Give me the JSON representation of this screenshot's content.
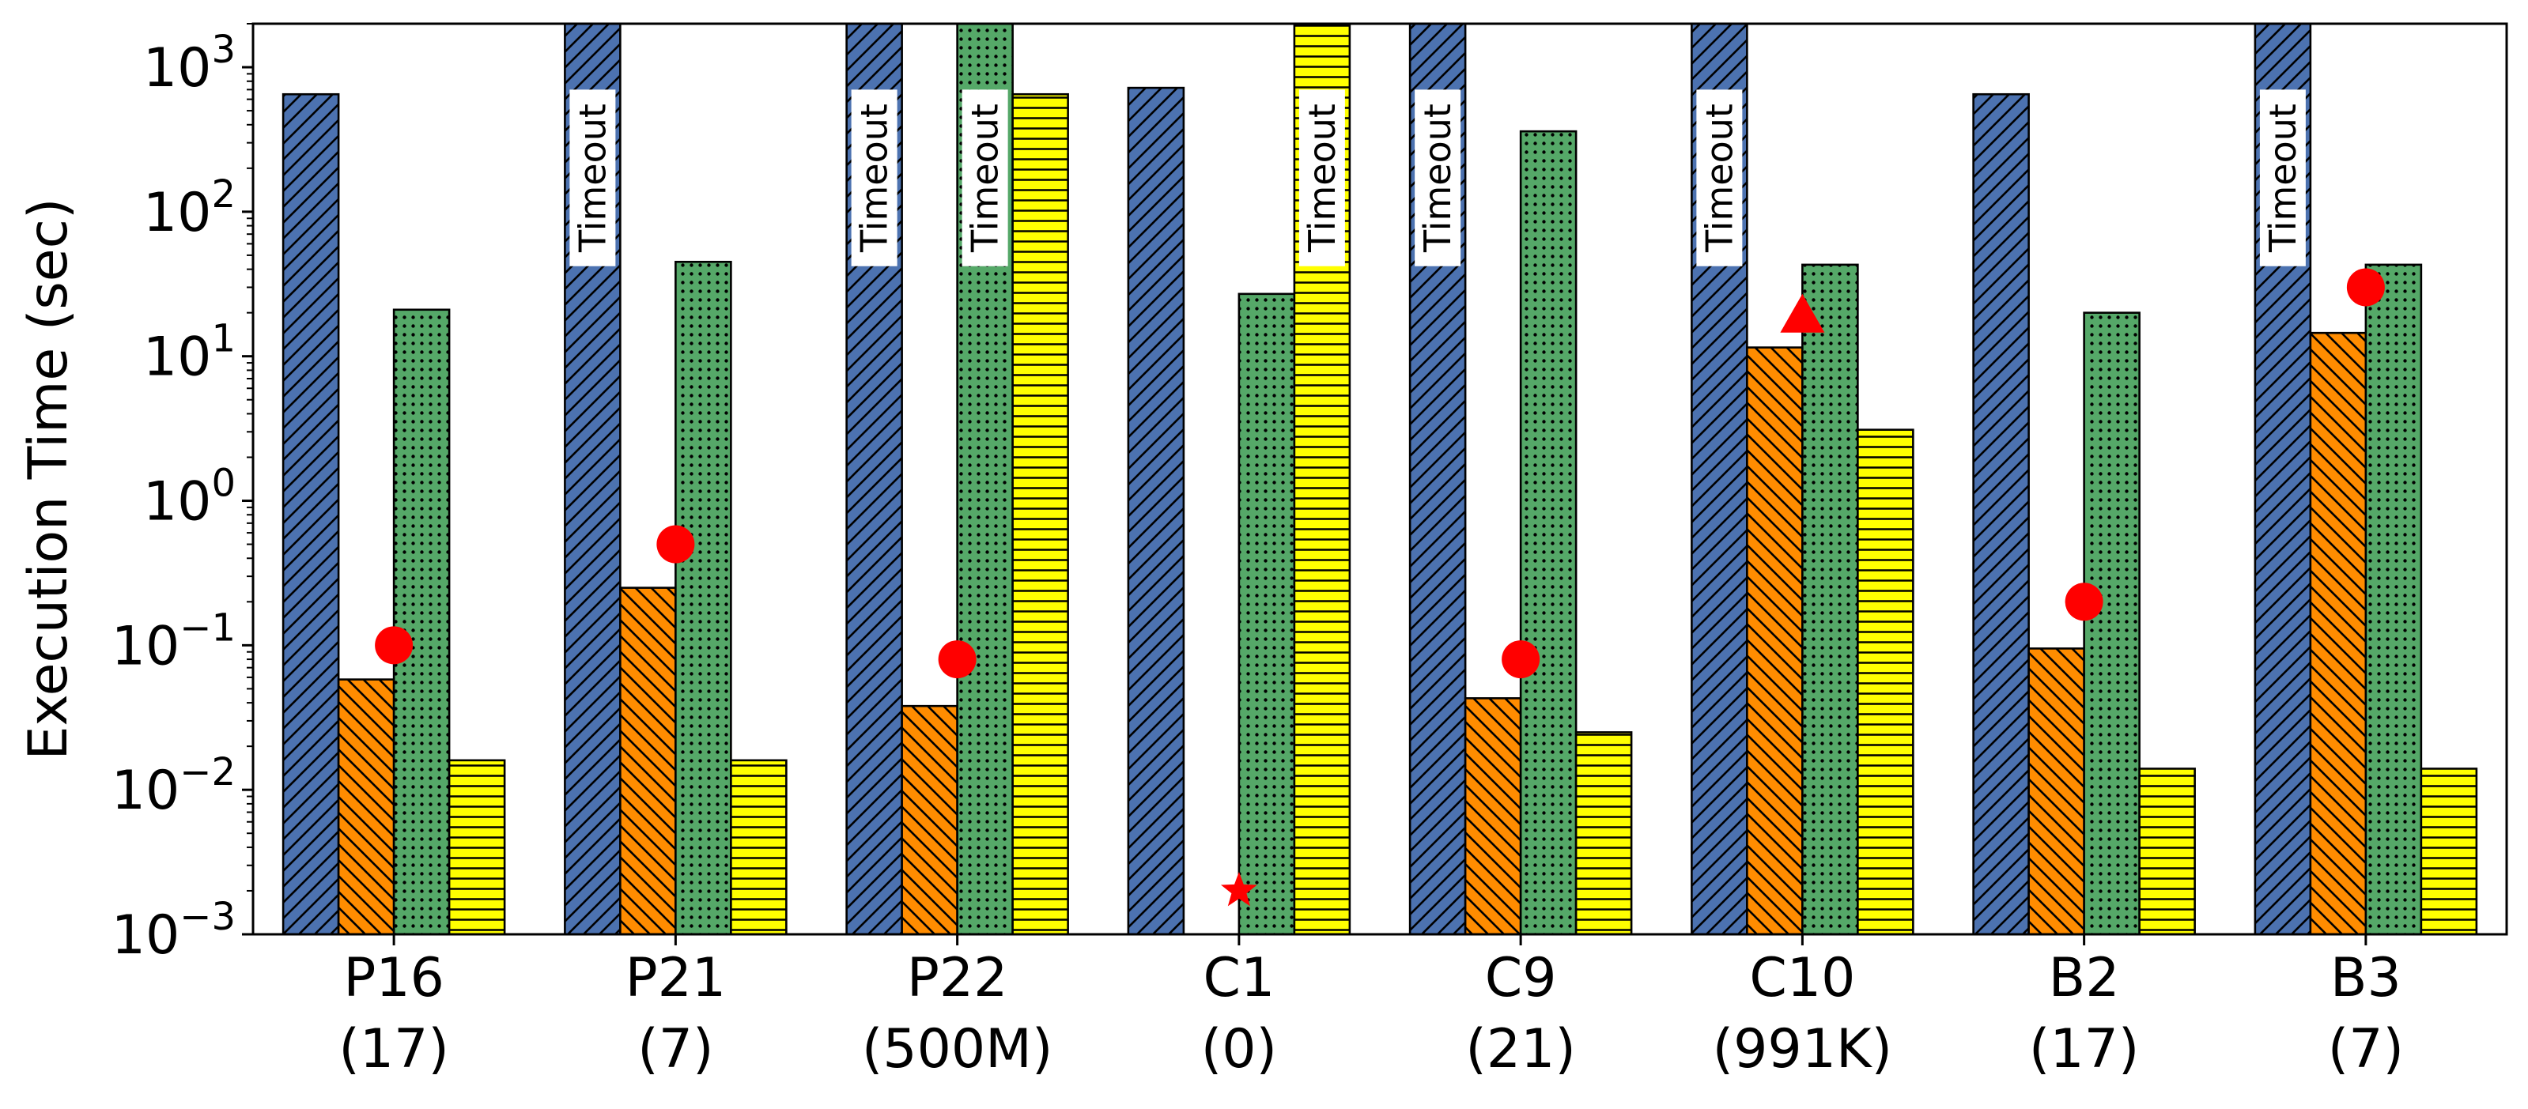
{
  "chart_data": {
    "type": "bar",
    "ylabel": "Execution Time (sec)",
    "yscale": "log",
    "ylim": [
      0.001,
      2000
    ],
    "yticks": [
      {
        "value": 0.001,
        "base": "10",
        "exp": "−3"
      },
      {
        "value": 0.01,
        "base": "10",
        "exp": "−2"
      },
      {
        "value": 0.1,
        "base": "10",
        "exp": "−1"
      },
      {
        "value": 1,
        "base": "10",
        "exp": "0"
      },
      {
        "value": 10,
        "base": "10",
        "exp": "1"
      },
      {
        "value": 100,
        "base": "10",
        "exp": "2"
      },
      {
        "value": 1000,
        "base": "10",
        "exp": "3"
      }
    ],
    "categories": [
      {
        "name": "P16",
        "sub": "(17)"
      },
      {
        "name": "P21",
        "sub": "(7)"
      },
      {
        "name": "P22",
        "sub": "(500M)"
      },
      {
        "name": "C1",
        "sub": "(0)"
      },
      {
        "name": "C9",
        "sub": "(21)"
      },
      {
        "name": "C10",
        "sub": "(991K)"
      },
      {
        "name": "B2",
        "sub": "(17)"
      },
      {
        "name": "B3",
        "sub": "(7)"
      }
    ],
    "timeout_label": "Timeout",
    "series": [
      {
        "color": "#4c72b0",
        "hatch": "diag-fwd",
        "values": [
          650,
          "Timeout",
          "Timeout",
          720,
          "Timeout",
          "Timeout",
          650,
          "Timeout"
        ]
      },
      {
        "color": "#ff8c00",
        "hatch": "diag-back",
        "values": [
          0.058,
          0.25,
          0.038,
          null,
          0.043,
          11.5,
          0.095,
          14.5
        ]
      },
      {
        "color": "#55a868",
        "hatch": "dots",
        "values": [
          21,
          45,
          "Timeout",
          27,
          360,
          43,
          20,
          43
        ]
      },
      {
        "color": "#ffff00",
        "hatch": "horiz",
        "values": [
          0.016,
          0.016,
          650,
          "Timeout",
          0.025,
          3.1,
          0.014,
          0.014
        ]
      }
    ],
    "markers": [
      {
        "category": 0,
        "shape": "circle",
        "value": 0.1
      },
      {
        "category": 1,
        "shape": "circle",
        "value": 0.5
      },
      {
        "category": 2,
        "shape": "circle",
        "value": 0.08
      },
      {
        "category": 3,
        "shape": "star",
        "value": 0.002
      },
      {
        "category": 4,
        "shape": "circle",
        "value": 0.08
      },
      {
        "category": 5,
        "shape": "triangle",
        "value": 19
      },
      {
        "category": 6,
        "shape": "circle",
        "value": 0.2
      },
      {
        "category": 7,
        "shape": "circle",
        "value": 30
      }
    ],
    "marker_color": "#ff0000",
    "grid": false,
    "legend": "none"
  }
}
